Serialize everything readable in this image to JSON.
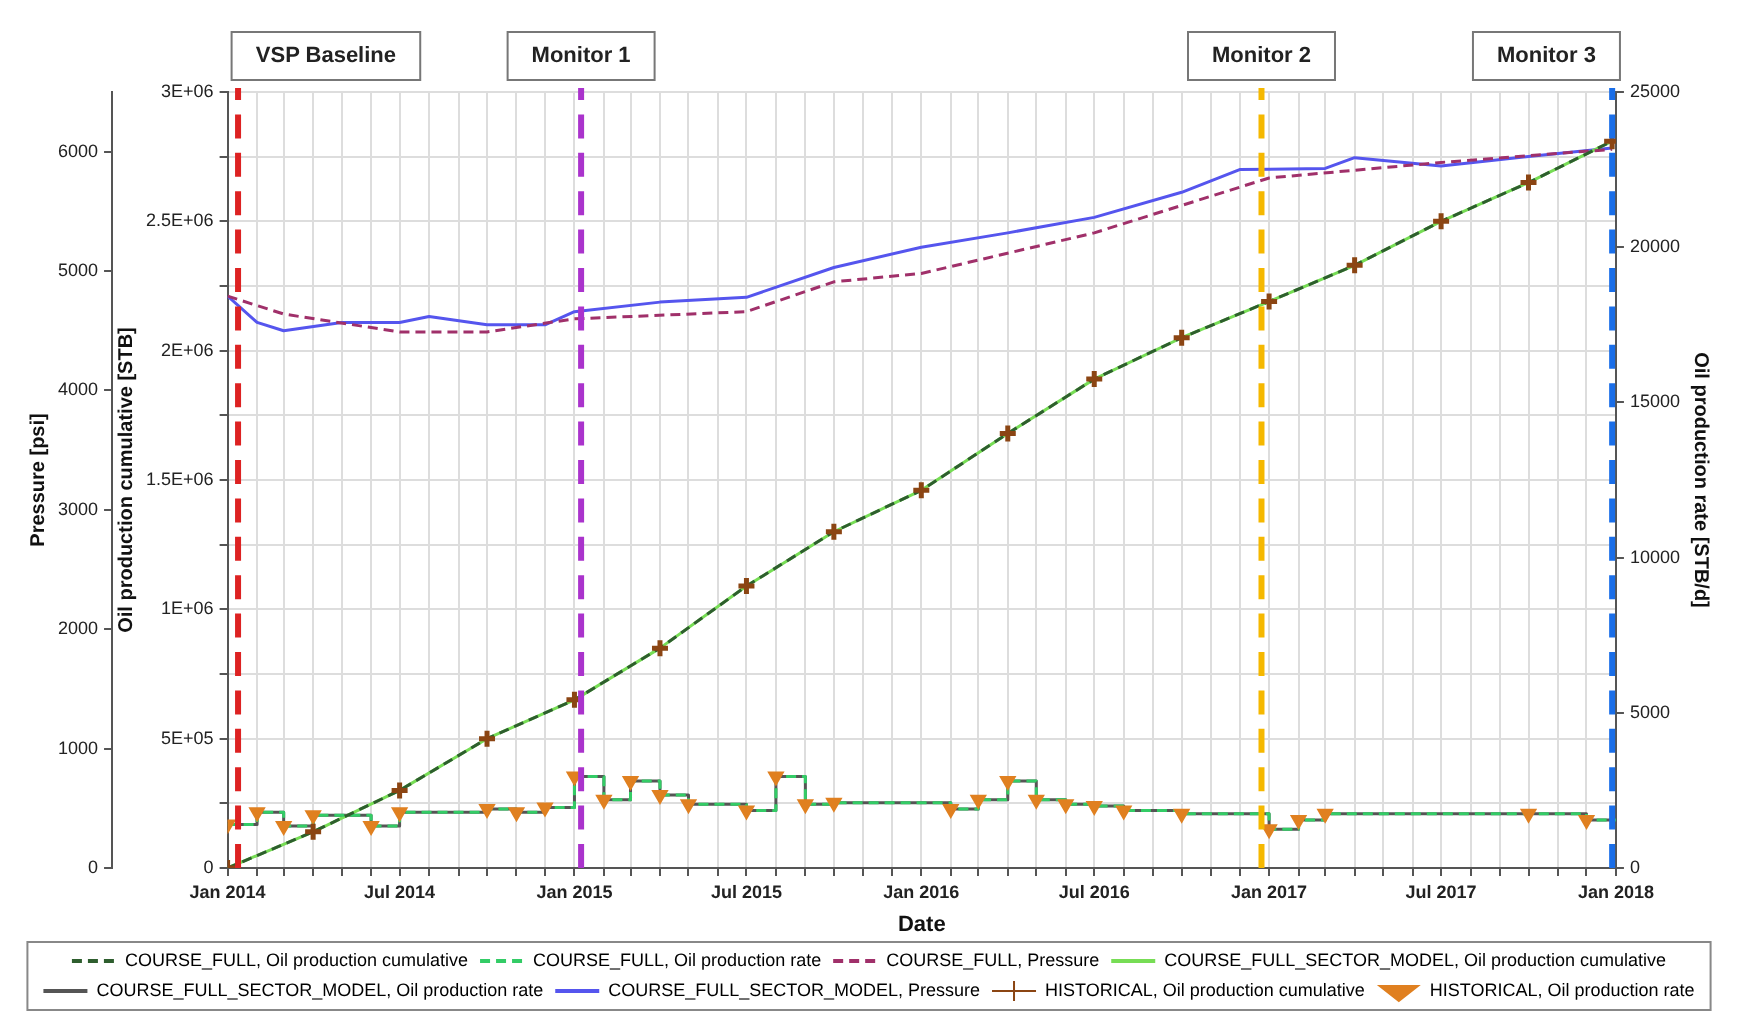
{
  "chart_data": {
    "type": "line",
    "xlabel": "Date",
    "ylabel": "Oil production cumulative [STB]",
    "y2label": "Oil production rate [STB/d]",
    "y3label": "Pressure [psi]",
    "xlim": [
      "2014-01-01",
      "2018-01-01"
    ],
    "xticks": [
      {
        "value": "2014-01-01",
        "label": "Jan 2014"
      },
      {
        "value": "2014-02-01",
        "label": null
      },
      {
        "value": "2014-03-01",
        "label": null
      },
      {
        "value": "2014-04-01",
        "label": null
      },
      {
        "value": "2014-05-01",
        "label": null
      },
      {
        "value": "2014-06-01",
        "label": null
      },
      {
        "value": "2014-07-01",
        "label": "Jul 2014"
      },
      {
        "value": "2014-08-01",
        "label": null
      },
      {
        "value": "2014-09-01",
        "label": null
      },
      {
        "value": "2014-10-01",
        "label": null
      },
      {
        "value": "2014-11-01",
        "label": null
      },
      {
        "value": "2014-12-01",
        "label": null
      },
      {
        "value": "2015-01-01",
        "label": "Jan 2015"
      },
      {
        "value": "2015-02-01",
        "label": null
      },
      {
        "value": "2015-03-01",
        "label": null
      },
      {
        "value": "2015-04-01",
        "label": null
      },
      {
        "value": "2015-05-01",
        "label": null
      },
      {
        "value": "2015-06-01",
        "label": null
      },
      {
        "value": "2015-07-01",
        "label": "Jul 2015"
      },
      {
        "value": "2015-08-01",
        "label": null
      },
      {
        "value": "2015-09-01",
        "label": null
      },
      {
        "value": "2015-10-01",
        "label": null
      },
      {
        "value": "2015-11-01",
        "label": null
      },
      {
        "value": "2015-12-01",
        "label": null
      },
      {
        "value": "2016-01-01",
        "label": "Jan 2016"
      },
      {
        "value": "2016-02-01",
        "label": null
      },
      {
        "value": "2016-03-01",
        "label": null
      },
      {
        "value": "2016-04-01",
        "label": null
      },
      {
        "value": "2016-05-01",
        "label": null
      },
      {
        "value": "2016-06-01",
        "label": null
      },
      {
        "value": "2016-07-01",
        "label": "Jul 2016"
      },
      {
        "value": "2016-08-01",
        "label": null
      },
      {
        "value": "2016-09-01",
        "label": null
      },
      {
        "value": "2016-10-01",
        "label": null
      },
      {
        "value": "2016-11-01",
        "label": null
      },
      {
        "value": "2016-12-01",
        "label": null
      },
      {
        "value": "2017-01-01",
        "label": "Jan 2017"
      },
      {
        "value": "2017-02-01",
        "label": null
      },
      {
        "value": "2017-03-01",
        "label": null
      },
      {
        "value": "2017-04-01",
        "label": null
      },
      {
        "value": "2017-05-01",
        "label": null
      },
      {
        "value": "2017-06-01",
        "label": null
      },
      {
        "value": "2017-07-01",
        "label": "Jul 2017"
      },
      {
        "value": "2017-08-01",
        "label": null
      },
      {
        "value": "2017-09-01",
        "label": null
      },
      {
        "value": "2017-10-01",
        "label": null
      },
      {
        "value": "2017-11-01",
        "label": null
      },
      {
        "value": "2017-12-01",
        "label": null
      },
      {
        "value": "2018-01-01",
        "label": "Jan 2018"
      }
    ],
    "ylim": [
      0,
      3000000
    ],
    "yticks": [
      0,
      {
        "value": 250000,
        "label": null
      },
      {
        "value": 500000,
        "label": "5E+05"
      },
      {
        "value": 750000,
        "label": null
      },
      {
        "value": 1000000,
        "label": "1E+06"
      },
      {
        "value": 1250000,
        "label": null
      },
      {
        "value": 1500000,
        "label": "1.5E+06"
      },
      {
        "value": 1750000,
        "label": null
      },
      {
        "value": 2000000,
        "label": "2E+06"
      },
      {
        "value": 2250000,
        "label": null
      },
      {
        "value": 2500000,
        "label": "2.5E+06"
      },
      {
        "value": 2750000,
        "label": null
      },
      {
        "value": 3000000,
        "label": "3E+06"
      }
    ],
    "y2lim": [
      0,
      25000
    ],
    "y2ticks": [
      0,
      5000,
      10000,
      15000,
      20000,
      25000
    ],
    "y3lim": [
      0,
      6500
    ],
    "y3ticks": [
      0,
      1000,
      2000,
      3000,
      4000,
      5000,
      6000
    ],
    "grid": true,
    "legend": "bottom",
    "ref_lines": [
      {
        "axis": "x",
        "value": "2014-01-12",
        "label": "VSP Baseline",
        "color": "#dd2222",
        "line_style": "dashed"
      },
      {
        "axis": "x",
        "value": "2015-01-08",
        "label": "Monitor 1",
        "color": "#aa33cc",
        "line_style": "dashed"
      },
      {
        "axis": "x",
        "value": "2016-12-24",
        "label": "Monitor 2",
        "color": "#f5b800",
        "line_style": "dashed"
      },
      {
        "axis": "x",
        "value": "2017-12-28",
        "label": "Monitor 3",
        "color": "#1a6ee8",
        "line_style": "dashed"
      }
    ],
    "series": [
      {
        "name": "COURSE_FULL, Oil production cumulative",
        "color": "#2e5e2e",
        "line_style": "dashed",
        "marker": "none",
        "x": [
          "2014-01-01",
          "2014-04-01",
          "2014-07-01",
          "2014-10-01",
          "2015-01-01",
          "2015-04-01",
          "2015-07-01",
          "2015-10-01",
          "2016-01-01",
          "2016-04-01",
          "2016-07-01",
          "2016-10-01",
          "2017-01-01",
          "2017-04-01",
          "2017-07-01",
          "2017-10-01",
          "2017-12-28"
        ],
        "values": [
          0,
          140000,
          300000,
          500000,
          650000,
          850000,
          1090000,
          1300000,
          1460000,
          1680000,
          1890000,
          2050000,
          2190000,
          2330000,
          2500000,
          2650000,
          2810000
        ]
      },
      {
        "name": "COURSE_FULL, Oil production rate",
        "type": "step",
        "axis": "y2",
        "color": "#33cc66",
        "line_style": "dashed",
        "marker": "none",
        "x": [
          "2014-01-01",
          "2014-02-01",
          "2014-03-01",
          "2014-04-01",
          "2014-06-01",
          "2014-07-01",
          "2014-10-01",
          "2014-11-01",
          "2014-12-01",
          "2015-01-01",
          "2015-02-01",
          "2015-03-01",
          "2015-04-01",
          "2015-05-01",
          "2015-07-01",
          "2015-08-01",
          "2015-09-01",
          "2015-10-01",
          "2016-02-01",
          "2016-03-01",
          "2016-04-01",
          "2016-05-01",
          "2016-06-01",
          "2016-07-01",
          "2016-08-01",
          "2016-10-01",
          "2017-01-01",
          "2017-02-01",
          "2017-03-01",
          "2017-10-01",
          "2017-12-01",
          "2018-01-01"
        ],
        "values": [
          1400,
          1800,
          1350,
          1700,
          1350,
          1800,
          1900,
          1800,
          1950,
          2950,
          2200,
          2800,
          2350,
          2050,
          1850,
          2950,
          2050,
          2100,
          1900,
          2200,
          2800,
          2200,
          2050,
          2000,
          1850,
          1750,
          1250,
          1550,
          1750,
          1750,
          1550,
          1550
        ]
      },
      {
        "name": "COURSE_FULL, Pressure",
        "axis": "y3",
        "color": "#a0306a",
        "line_style": "dashed",
        "marker": "none",
        "x": [
          "2014-01-01",
          "2014-03-01",
          "2014-07-01",
          "2014-10-01",
          "2015-01-01",
          "2015-07-01",
          "2015-10-01",
          "2016-01-01",
          "2016-07-01",
          "2017-01-01",
          "2017-07-01",
          "2017-12-28"
        ],
        "values": [
          4790,
          4640,
          4490,
          4490,
          4600,
          4660,
          4910,
          4980,
          5320,
          5780,
          5910,
          6020
        ]
      },
      {
        "name": "COURSE_FULL_SECTOR_MODEL, Oil production cumulative",
        "color": "#77dd55",
        "line_style": "solid",
        "marker": "none",
        "x": [
          "2014-01-01",
          "2014-04-01",
          "2014-07-01",
          "2014-10-01",
          "2015-01-01",
          "2015-04-01",
          "2015-07-01",
          "2015-10-01",
          "2016-01-01",
          "2016-04-01",
          "2016-07-01",
          "2016-10-01",
          "2017-01-01",
          "2017-04-01",
          "2017-07-01",
          "2017-10-01",
          "2017-12-28"
        ],
        "values": [
          0,
          140000,
          300000,
          500000,
          650000,
          850000,
          1090000,
          1300000,
          1460000,
          1680000,
          1890000,
          2050000,
          2190000,
          2330000,
          2500000,
          2650000,
          2810000
        ]
      },
      {
        "name": "COURSE_FULL_SECTOR_MODEL, Oil production rate",
        "type": "step",
        "axis": "y2",
        "color": "#555555",
        "line_style": "solid",
        "marker": "none",
        "x": [
          "2014-01-01",
          "2014-02-01",
          "2014-03-01",
          "2014-04-01",
          "2014-06-01",
          "2014-07-01",
          "2014-10-01",
          "2014-11-01",
          "2014-12-01",
          "2015-01-01",
          "2015-02-01",
          "2015-03-01",
          "2015-04-01",
          "2015-05-01",
          "2015-07-01",
          "2015-08-01",
          "2015-09-01",
          "2015-10-01",
          "2016-02-01",
          "2016-03-01",
          "2016-04-01",
          "2016-05-01",
          "2016-06-01",
          "2016-07-01",
          "2016-08-01",
          "2016-10-01",
          "2017-01-01",
          "2017-02-01",
          "2017-03-01",
          "2017-10-01",
          "2017-12-01",
          "2018-01-01"
        ],
        "values": [
          1400,
          1800,
          1350,
          1700,
          1350,
          1800,
          1900,
          1800,
          1950,
          2950,
          2200,
          2800,
          2350,
          2050,
          1850,
          2950,
          2050,
          2100,
          1900,
          2200,
          2800,
          2200,
          2050,
          2000,
          1850,
          1750,
          1250,
          1550,
          1750,
          1750,
          1550,
          1550
        ]
      },
      {
        "name": "COURSE_FULL_SECTOR_MODEL, Pressure",
        "axis": "y3",
        "color": "#5555ee",
        "line_style": "solid",
        "marker": "none",
        "x": [
          "2014-01-01",
          "2014-02-01",
          "2014-03-01",
          "2014-05-01",
          "2014-07-01",
          "2014-08-01",
          "2014-10-01",
          "2014-12-01",
          "2015-01-01",
          "2015-04-01",
          "2015-07-01",
          "2015-10-01",
          "2016-01-01",
          "2016-04-01",
          "2016-07-01",
          "2016-10-01",
          "2016-12-01",
          "2017-03-01",
          "2017-04-01",
          "2017-07-01",
          "2017-10-01",
          "2017-12-28"
        ],
        "values": [
          4790,
          4570,
          4500,
          4570,
          4570,
          4620,
          4550,
          4550,
          4660,
          4740,
          4780,
          5030,
          5200,
          5320,
          5450,
          5660,
          5850,
          5860,
          5950,
          5880,
          5960,
          6030
        ]
      },
      {
        "name": "HISTORICAL, Oil production cumulative",
        "type": "scatter",
        "color": "#8b4513",
        "marker": "cross",
        "x": [
          "2014-01-01",
          "2014-04-01",
          "2014-07-01",
          "2014-10-01",
          "2015-01-01",
          "2015-04-01",
          "2015-07-01",
          "2015-10-01",
          "2016-01-01",
          "2016-04-01",
          "2016-07-01",
          "2016-10-01",
          "2017-01-01",
          "2017-04-01",
          "2017-07-01",
          "2017-10-01",
          "2017-12-28"
        ],
        "values": [
          0,
          140000,
          300000,
          500000,
          650000,
          850000,
          1090000,
          1300000,
          1460000,
          1680000,
          1890000,
          2050000,
          2190000,
          2330000,
          2500000,
          2650000,
          2810000
        ]
      },
      {
        "name": "HISTORICAL, Oil production rate",
        "type": "scatter",
        "axis": "y2",
        "color": "#e08020",
        "marker": "triangle",
        "x": [
          "2014-01-01",
          "2014-02-01",
          "2014-03-01",
          "2014-04-01",
          "2014-06-01",
          "2014-07-01",
          "2014-10-01",
          "2014-11-01",
          "2014-12-01",
          "2015-01-01",
          "2015-02-01",
          "2015-03-01",
          "2015-04-01",
          "2015-05-01",
          "2015-07-01",
          "2015-08-01",
          "2015-09-01",
          "2015-10-01",
          "2016-02-01",
          "2016-03-01",
          "2016-04-01",
          "2016-05-01",
          "2016-06-01",
          "2016-07-01",
          "2016-08-01",
          "2016-10-01",
          "2017-01-01",
          "2017-02-01",
          "2017-03-01",
          "2017-10-01",
          "2017-12-01"
        ],
        "values": [
          1400,
          1800,
          1350,
          1700,
          1350,
          1800,
          1900,
          1800,
          1950,
          2950,
          2200,
          2800,
          2350,
          2050,
          1850,
          2950,
          2050,
          2100,
          1900,
          2200,
          2800,
          2200,
          2050,
          2000,
          1850,
          1750,
          1250,
          1550,
          1750,
          1750,
          1550
        ]
      }
    ]
  }
}
